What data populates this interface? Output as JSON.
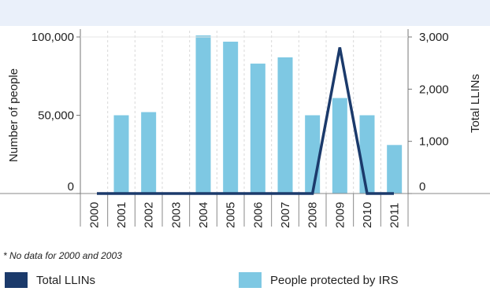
{
  "chart_data": {
    "type": "bar",
    "categories": [
      "2000",
      "2001",
      "2002",
      "2003",
      "2004",
      "2005",
      "2006",
      "2007",
      "2008",
      "2009",
      "2010",
      "2011"
    ],
    "series": [
      {
        "name": "People protected by IRS",
        "type": "bar",
        "axis": "left",
        "color": "#7ec8e3",
        "values": [
          0,
          50000,
          52000,
          0,
          101000,
          97000,
          83000,
          87000,
          50000,
          61000,
          50000,
          31000
        ]
      },
      {
        "name": "Total LLINs",
        "type": "line",
        "axis": "right",
        "color": "#1b3a6b",
        "values": [
          0,
          0,
          0,
          0,
          0,
          0,
          0,
          0,
          0,
          2800,
          0,
          0
        ]
      }
    ],
    "y_left": {
      "label": "Number of people",
      "range": [
        0,
        100000
      ],
      "ticks": [
        {
          "value": 0,
          "label": "0"
        },
        {
          "value": 50000,
          "label": "50,000"
        },
        {
          "value": 100000,
          "label": "100,000"
        }
      ]
    },
    "y_right": {
      "label": "Total LLINs",
      "range": [
        0,
        3000
      ],
      "ticks": [
        {
          "value": 0,
          "label": "0"
        },
        {
          "value": 1000,
          "label": "1,000"
        },
        {
          "value": 2000,
          "label": "2,000"
        },
        {
          "value": 3000,
          "label": "3,000"
        }
      ]
    },
    "grid": "vertical dashed",
    "legend_placement": "bottom"
  },
  "footnote": "* No data for 2000 and 2003",
  "legend": [
    {
      "label": "Total LLINs",
      "color": "#1b3a6b"
    },
    {
      "label": "People protected by IRS",
      "color": "#7ec8e3"
    }
  ]
}
